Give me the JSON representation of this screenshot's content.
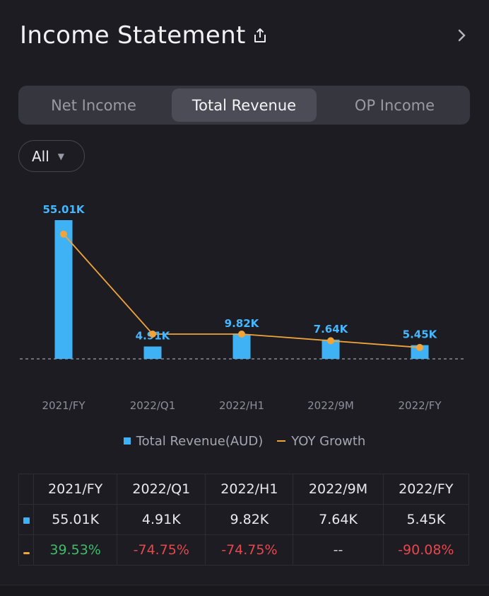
{
  "header": {
    "title": "Income Statement"
  },
  "tabs": [
    {
      "label": "Net Income",
      "active": false
    },
    {
      "label": "Total Revenue",
      "active": true
    },
    {
      "label": "OP Income",
      "active": false
    }
  ],
  "filter": {
    "label": "All"
  },
  "colors": {
    "bar": "#3fb1f5",
    "line": "#f0a43a",
    "label": "#46b7ff",
    "positive": "#3fbd6a",
    "negative": "#e5484d"
  },
  "chart_data": {
    "type": "bar",
    "categories": [
      "2021/FY",
      "2022/Q1",
      "2022/H1",
      "2022/9M",
      "2022/FY"
    ],
    "series": [
      {
        "name": "Total Revenue(AUD)",
        "type": "bar",
        "values": [
          55.01,
          4.91,
          9.82,
          7.64,
          5.45
        ],
        "value_labels": [
          "55.01K",
          "4.91K",
          "9.82K",
          "7.64K",
          "5.45K"
        ]
      },
      {
        "name": "YOY Growth",
        "type": "line",
        "values": [
          39.53,
          -74.75,
          -74.75,
          null,
          -90.08
        ]
      }
    ],
    "line_display_points": [
      39.53,
      -74.75,
      -74.75,
      -82.4,
      -90.08
    ],
    "baseline": "dashed",
    "legend": "bottom-center"
  },
  "table": {
    "headers": [
      "2021/FY",
      "2022/Q1",
      "2022/H1",
      "2022/9M",
      "2022/FY"
    ],
    "revenue": [
      "55.01K",
      "4.91K",
      "9.82K",
      "7.64K",
      "5.45K"
    ],
    "growth": [
      {
        "text": "39.53%",
        "kind": "pos"
      },
      {
        "text": "-74.75%",
        "kind": "neg"
      },
      {
        "text": "-74.75%",
        "kind": "neg"
      },
      {
        "text": "--",
        "kind": "neu"
      },
      {
        "text": "-90.08%",
        "kind": "neg"
      }
    ]
  }
}
